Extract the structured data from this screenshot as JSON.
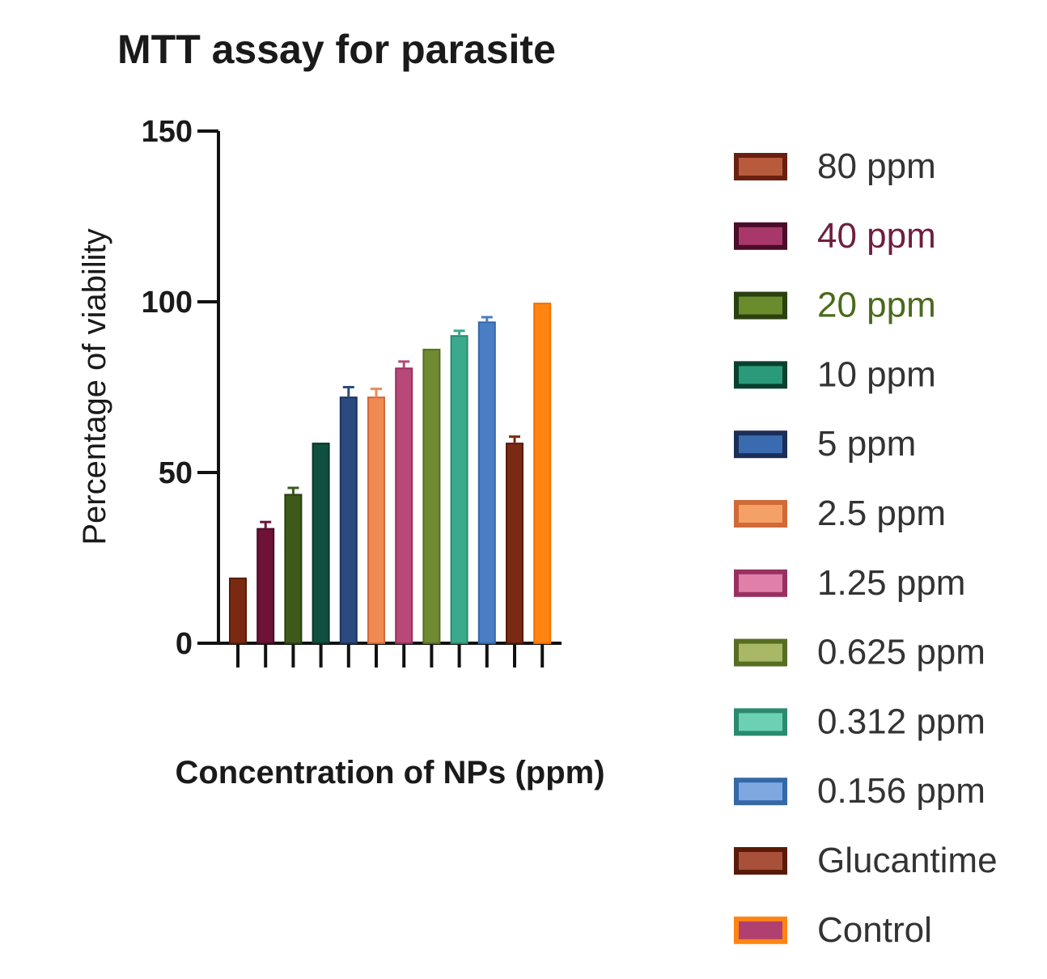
{
  "chart_data": {
    "type": "bar",
    "title": "MTT assay for parasite",
    "xlabel": "Concentration of NPs (ppm)",
    "ylabel": "Percentage of viability",
    "ylim": [
      0,
      150
    ],
    "yticks": [
      0,
      50,
      100,
      150
    ],
    "legend_position": "right",
    "grid": false,
    "categories": [
      "80 ppm",
      "40 ppm",
      "20 ppm",
      "10 ppm",
      "5 ppm",
      "2.5 ppm",
      "1.25 ppm",
      "0.625 ppm",
      "0.312 ppm",
      "0.156 ppm",
      "Glucantime",
      "Control"
    ],
    "values": [
      19,
      33.5,
      43.5,
      58.5,
      72,
      72,
      80.5,
      86,
      90,
      94,
      58.5,
      99.5
    ],
    "errors": [
      0,
      2,
      2,
      0,
      3,
      2.5,
      2,
      0,
      1.5,
      1.5,
      2,
      0
    ],
    "bar_colors": [
      "#7a2a12",
      "#6e1238",
      "#3d5a19",
      "#0f5040",
      "#2b4a80",
      "#ee8a52",
      "#b84878",
      "#6f8a32",
      "#3aa98c",
      "#4a7ec4",
      "#7a2a12",
      "#ff8412"
    ],
    "bar_edge_colors": [
      "#5a1a08",
      "#4a0c28",
      "#2a4010",
      "#08382c",
      "#1c3460",
      "#d06a38",
      "#983060",
      "#566e22",
      "#2a8a70",
      "#3468a8",
      "#5a1a08",
      "#f07000"
    ],
    "legend": [
      {
        "label": "80 ppm",
        "text_color": "#333333",
        "swatch_fill": "#b85a3c",
        "swatch_edge": "#6a2010"
      },
      {
        "label": "40 ppm",
        "text_color": "#6e1e40",
        "swatch_fill": "#a8386a",
        "swatch_edge": "#4a0c28"
      },
      {
        "label": "20 ppm",
        "text_color": "#4a6a1c",
        "swatch_fill": "#6a8c2c",
        "swatch_edge": "#2a4010"
      },
      {
        "label": "10 ppm",
        "text_color": "#333333",
        "swatch_fill": "#2a9a7a",
        "swatch_edge": "#0a4030"
      },
      {
        "label": "5 ppm",
        "text_color": "#333333",
        "swatch_fill": "#3a6ab0",
        "swatch_edge": "#1a2e58"
      },
      {
        "label": "2.5 ppm",
        "text_color": "#333333",
        "swatch_fill": "#f5a066",
        "swatch_edge": "#d06a38"
      },
      {
        "label": "1.25 ppm",
        "text_color": "#333333",
        "swatch_fill": "#e080a8",
        "swatch_edge": "#983060"
      },
      {
        "label": "0.625 ppm",
        "text_color": "#333333",
        "swatch_fill": "#a8b866",
        "swatch_edge": "#566e22"
      },
      {
        "label": "0.312 ppm",
        "text_color": "#333333",
        "swatch_fill": "#6cd0b4",
        "swatch_edge": "#2a8a70"
      },
      {
        "label": "0.156 ppm",
        "text_color": "#333333",
        "swatch_fill": "#80a8e0",
        "swatch_edge": "#3468a8"
      },
      {
        "label": "Glucantime",
        "text_color": "#333333",
        "swatch_fill": "#a8503a",
        "swatch_edge": "#5a1a08"
      },
      {
        "label": "Control",
        "text_color": "#333333",
        "swatch_fill": "#b04070",
        "swatch_edge": "#ff8412"
      }
    ]
  }
}
